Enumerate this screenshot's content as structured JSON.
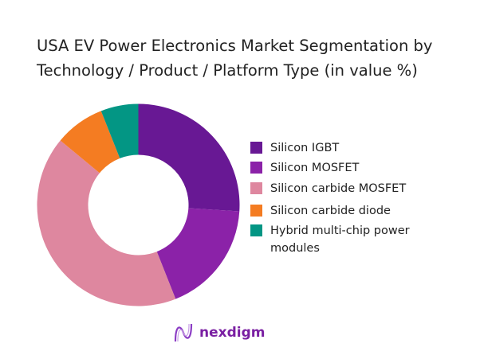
{
  "chart_data": {
    "type": "pie",
    "donut": true,
    "title": "USA EV Power Electronics Market Segmentation by Technology / Product / Platform Type (in value %)",
    "categories": [
      "Silicon IGBT",
      "Silicon MOSFET",
      "Silicon carbide MOSFET",
      "Silicon carbide diode",
      "Hybrid multi-chip power modules"
    ],
    "values": [
      26,
      18,
      42,
      8,
      6
    ],
    "colors": [
      "#681894",
      "#8b22a8",
      "#de879f",
      "#f47c22",
      "#039684"
    ],
    "legend_position": "right"
  },
  "logo": {
    "text": "nexdigm",
    "color": "#7a1fa2"
  }
}
